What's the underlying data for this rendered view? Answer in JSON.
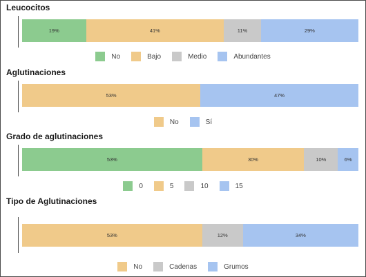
{
  "colors": {
    "green": "#8ccb8f",
    "orange": "#f0ca8a",
    "gray": "#c9c9c9",
    "blue": "#a6c4f0"
  },
  "chart_data": [
    {
      "type": "bar",
      "stacked": true,
      "orientation": "horizontal",
      "title": "Leucocitos",
      "legend_position": "bottom",
      "series": [
        {
          "name": "No",
          "value": 19,
          "label": "19%",
          "color": "#8ccb8f"
        },
        {
          "name": "Bajo",
          "value": 41,
          "label": "41%",
          "color": "#f0ca8a"
        },
        {
          "name": "Medio",
          "value": 11,
          "label": "11%",
          "color": "#c9c9c9"
        },
        {
          "name": "Abundantes",
          "value": 29,
          "label": "29%",
          "color": "#a6c4f0"
        }
      ]
    },
    {
      "type": "bar",
      "stacked": true,
      "orientation": "horizontal",
      "title": "Aglutinaciones",
      "legend_position": "bottom",
      "series": [
        {
          "name": "No",
          "value": 53,
          "label": "53%",
          "color": "#f0ca8a"
        },
        {
          "name": "Sí",
          "value": 47,
          "label": "47%",
          "color": "#a6c4f0"
        }
      ]
    },
    {
      "type": "bar",
      "stacked": true,
      "orientation": "horizontal",
      "title": "Grado de aglutinaciones",
      "legend_position": "bottom",
      "series": [
        {
          "name": "0",
          "value": 53,
          "label": "53%",
          "color": "#8ccb8f"
        },
        {
          "name": "5",
          "value": 30,
          "label": "30%",
          "color": "#f0ca8a"
        },
        {
          "name": "10",
          "value": 10,
          "label": "10%",
          "color": "#c9c9c9"
        },
        {
          "name": "15",
          "value": 6,
          "label": "6%",
          "color": "#a6c4f0"
        }
      ]
    },
    {
      "type": "bar",
      "stacked": true,
      "orientation": "horizontal",
      "title": "Tipo de Aglutinaciones",
      "legend_position": "bottom",
      "series": [
        {
          "name": "No",
          "value": 53,
          "label": "53%",
          "color": "#f0ca8a"
        },
        {
          "name": "Cadenas",
          "value": 12,
          "label": "12%",
          "color": "#c9c9c9"
        },
        {
          "name": "Grumos",
          "value": 34,
          "label": "34%",
          "color": "#a6c4f0"
        }
      ]
    }
  ]
}
